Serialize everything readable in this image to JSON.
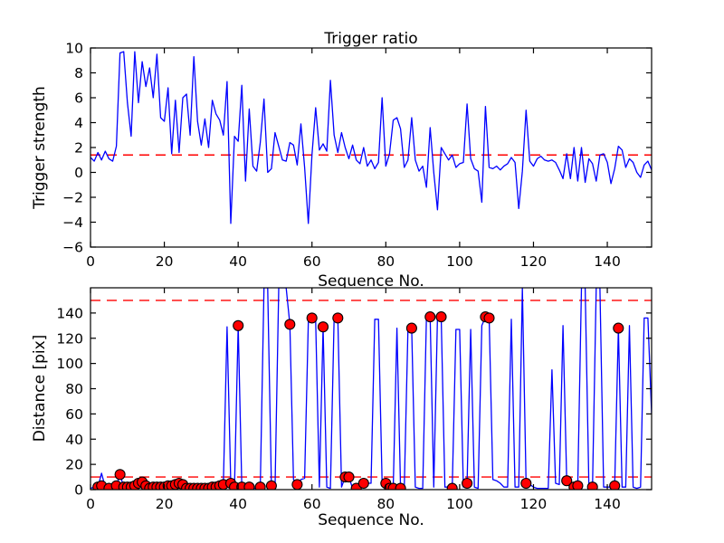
{
  "figure": {
    "background": "#ffffff",
    "frame_color": "#000000",
    "line_color": "#0000ff",
    "threshold_color": "#ff0000",
    "marker_fill": "#ff0000",
    "marker_edge": "#000000"
  },
  "chart_data": [
    {
      "type": "line",
      "title": "Trigger ratio",
      "xlabel": "Sequence No.",
      "ylabel": "Trigger strength",
      "xlim": [
        0,
        152
      ],
      "ylim": [
        -6,
        10
      ],
      "xticks": [
        0,
        20,
        40,
        60,
        80,
        100,
        120,
        140
      ],
      "yticks": [
        -6,
        -4,
        -2,
        0,
        2,
        4,
        6,
        8,
        10
      ],
      "grid": false,
      "legend": null,
      "threshold_lines": [
        {
          "y": 1.4,
          "color": "#ff0000",
          "style": "dashed"
        }
      ],
      "series": [
        {
          "name": "trigger-strength",
          "color": "#0000ff",
          "x_start": 0,
          "x_step": 1,
          "y": [
            1.2,
            0.9,
            1.6,
            1.0,
            1.7,
            1.1,
            0.9,
            2.1,
            9.6,
            9.7,
            5.6,
            2.9,
            9.7,
            5.6,
            8.9,
            6.9,
            8.4,
            6.0,
            9.5,
            4.4,
            4.1,
            6.8,
            1.5,
            5.8,
            1.6,
            6.0,
            6.3,
            3.0,
            9.3,
            4.1,
            2.2,
            4.3,
            2.0,
            5.8,
            4.7,
            4.2,
            3.0,
            7.3,
            -4.1,
            2.9,
            2.5,
            7.0,
            -0.7,
            5.1,
            0.5,
            0.1,
            2.4,
            5.9,
            0.0,
            0.3,
            3.2,
            2.1,
            1.0,
            0.9,
            2.4,
            2.2,
            0.6,
            3.9,
            0.4,
            -4.1,
            1.4,
            5.2,
            1.8,
            2.3,
            1.7,
            7.4,
            3.0,
            1.6,
            3.2,
            2.0,
            1.1,
            2.2,
            1.0,
            0.7,
            2.0,
            0.5,
            1.0,
            0.3,
            0.8,
            6.0,
            0.5,
            1.5,
            4.2,
            4.4,
            3.5,
            0.4,
            1.0,
            4.4,
            1.0,
            0.1,
            0.5,
            -1.2,
            3.6,
            0.0,
            -3.0,
            2.0,
            1.5,
            1.0,
            1.4,
            0.4,
            0.7,
            0.8,
            5.5,
            1.1,
            0.3,
            0.1,
            -2.4,
            5.3,
            0.4,
            0.3,
            0.5,
            0.2,
            0.5,
            0.7,
            1.2,
            0.8,
            -2.9,
            0.1,
            5.0,
            0.9,
            0.5,
            1.1,
            1.3,
            1.0,
            0.9,
            1.0,
            0.8,
            0.2,
            -0.5,
            1.5,
            -0.5,
            2.0,
            -0.7,
            2.0,
            -0.8,
            1.1,
            0.7,
            -0.7,
            1.4,
            1.5,
            0.8,
            -0.9,
            0.3,
            2.1,
            1.8,
            0.4,
            1.1,
            0.8,
            0.0,
            -0.4,
            0.6,
            0.9,
            0.2
          ]
        }
      ]
    },
    {
      "type": "line",
      "title": "",
      "xlabel": "Sequence No.",
      "ylabel": "Distance [pix]",
      "xlim": [
        0,
        152
      ],
      "ylim": [
        0,
        160
      ],
      "xticks": [
        0,
        20,
        40,
        60,
        80,
        100,
        120,
        140
      ],
      "yticks": [
        0,
        20,
        40,
        60,
        80,
        100,
        120,
        140
      ],
      "grid": false,
      "legend": null,
      "threshold_lines": [
        {
          "y": 150,
          "color": "#ff0000",
          "style": "dashed"
        },
        {
          "y": 10,
          "color": "#ff0000",
          "style": "dashed"
        }
      ],
      "series": [
        {
          "name": "distance",
          "color": "#0000ff",
          "x_start": 0,
          "x_step": 1,
          "y": [
            1,
            2,
            2,
            13,
            2,
            1,
            2,
            3,
            12,
            2,
            2,
            2,
            3,
            5,
            6,
            3,
            1,
            2,
            2,
            2,
            2,
            3,
            3,
            4,
            5,
            4,
            1,
            1,
            1,
            1,
            1,
            1,
            1,
            2,
            2,
            3,
            4,
            129,
            5,
            2,
            130,
            2,
            1,
            2,
            1,
            1,
            2,
            160,
            160,
            3,
            1,
            160,
            160,
            160,
            131,
            8,
            4,
            8,
            9,
            133,
            136,
            134,
            2,
            129,
            2,
            1,
            136,
            136,
            2,
            10,
            10,
            1,
            1,
            2,
            5,
            5,
            5,
            135,
            135,
            6,
            5,
            1,
            1,
            128,
            1,
            1,
            128,
            128,
            2,
            1,
            1,
            137,
            137,
            2,
            137,
            137,
            2,
            2,
            1,
            127,
            127,
            2,
            5,
            127,
            2,
            1,
            130,
            137,
            136,
            8,
            7,
            5,
            2,
            2,
            135,
            2,
            2,
            160,
            5,
            4,
            2,
            1,
            1,
            1,
            1,
            95,
            5,
            4,
            130,
            7,
            2,
            2,
            3,
            160,
            160,
            3,
            2,
            160,
            160,
            2,
            2,
            2,
            3,
            128,
            2,
            2,
            130,
            2,
            1,
            2,
            136,
            136,
            60
          ]
        }
      ],
      "markers": {
        "name": "matched-points",
        "color": "#ff0000",
        "edge": "#000000",
        "points": [
          [
            2,
            2
          ],
          [
            3,
            3
          ],
          [
            5,
            1
          ],
          [
            7,
            3
          ],
          [
            8,
            12
          ],
          [
            9,
            2
          ],
          [
            10,
            2
          ],
          [
            11,
            2
          ],
          [
            12,
            3
          ],
          [
            13,
            5
          ],
          [
            14,
            6
          ],
          [
            15,
            3
          ],
          [
            16,
            1
          ],
          [
            17,
            2
          ],
          [
            18,
            2
          ],
          [
            19,
            2
          ],
          [
            20,
            2
          ],
          [
            21,
            3
          ],
          [
            22,
            3
          ],
          [
            23,
            4
          ],
          [
            24,
            5
          ],
          [
            25,
            4
          ],
          [
            26,
            1
          ],
          [
            27,
            1
          ],
          [
            28,
            1
          ],
          [
            29,
            1
          ],
          [
            30,
            1
          ],
          [
            31,
            1
          ],
          [
            32,
            1
          ],
          [
            33,
            2
          ],
          [
            34,
            2
          ],
          [
            35,
            3
          ],
          [
            36,
            4
          ],
          [
            38,
            5
          ],
          [
            39,
            2
          ],
          [
            40,
            130
          ],
          [
            41,
            2
          ],
          [
            43,
            2
          ],
          [
            46,
            2
          ],
          [
            49,
            3
          ],
          [
            54,
            131
          ],
          [
            56,
            4
          ],
          [
            60,
            136
          ],
          [
            63,
            129
          ],
          [
            67,
            136
          ],
          [
            69,
            10
          ],
          [
            70,
            10
          ],
          [
            72,
            1
          ],
          [
            74,
            5
          ],
          [
            80,
            5
          ],
          [
            81,
            1
          ],
          [
            82,
            1
          ],
          [
            84,
            1
          ],
          [
            87,
            128
          ],
          [
            92,
            137
          ],
          [
            95,
            137
          ],
          [
            98,
            1
          ],
          [
            102,
            5
          ],
          [
            107,
            137
          ],
          [
            108,
            136
          ],
          [
            118,
            5
          ],
          [
            129,
            7
          ],
          [
            131,
            2
          ],
          [
            132,
            3
          ],
          [
            136,
            2
          ],
          [
            142,
            3
          ],
          [
            143,
            128
          ]
        ]
      }
    }
  ]
}
